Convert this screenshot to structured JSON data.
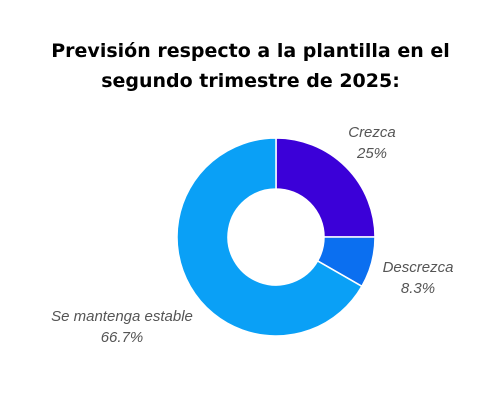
{
  "chart_data": {
    "type": "pie",
    "variant": "donut",
    "title_lines": [
      "Previsión respecto a la plantilla en el",
      "segundo trimestre de 2025:"
    ],
    "slices": [
      {
        "label": "Crezca",
        "value": 25,
        "value_label": "25%",
        "color": "#3b00d8"
      },
      {
        "label": "Descrezca",
        "value": 8.3,
        "value_label": "8.3%",
        "color": "#0b6ff0"
      },
      {
        "label": "Se mantenga estable",
        "value": 66.7,
        "value_label": "66.7%",
        "color": "#0aa0f6"
      }
    ],
    "legend": "none"
  }
}
